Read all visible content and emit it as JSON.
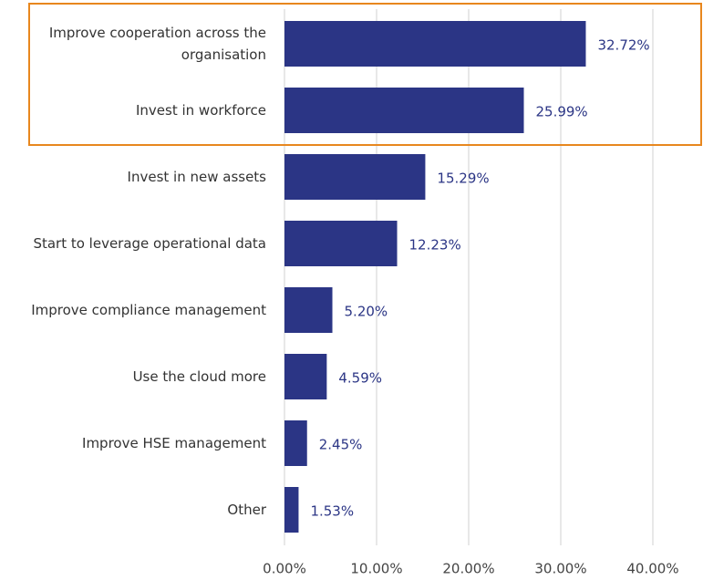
{
  "chart_data": {
    "type": "barh",
    "categories": [
      "Improve cooperation across the organisation",
      "Invest in workforce",
      "Invest in new assets",
      "Start to leverage operational data",
      "Improve compliance management",
      "Use the cloud more",
      "Improve HSE management",
      "Other"
    ],
    "values": [
      32.72,
      25.99,
      15.29,
      12.23,
      5.2,
      4.59,
      2.45,
      1.53
    ],
    "value_labels": [
      "32.72%",
      "25.99%",
      "15.29%",
      "12.23%",
      "5.20%",
      "4.59%",
      "2.45%",
      "1.53%"
    ],
    "color": "#2b3585",
    "xlim": [
      0,
      40
    ],
    "xticks": [
      {
        "value": 0,
        "label": "0.00%"
      },
      {
        "value": 10,
        "label": "10.00%"
      },
      {
        "value": 20,
        "label": "20.00%"
      },
      {
        "value": 30,
        "label": "30.00%"
      },
      {
        "value": 40,
        "label": "40.00%"
      }
    ],
    "grid": true
  }
}
